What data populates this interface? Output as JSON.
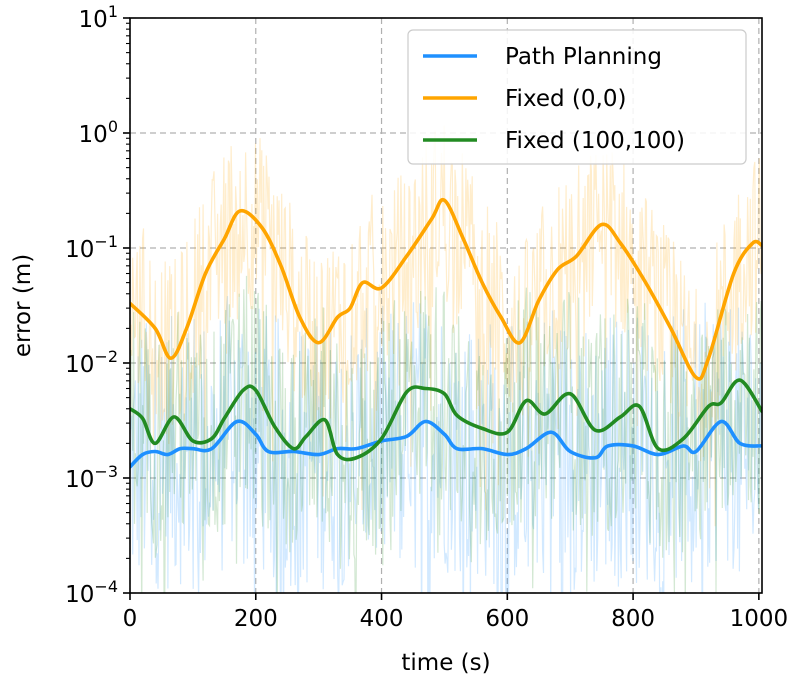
{
  "chart_data": {
    "type": "line",
    "title": "",
    "xlabel": "time (s)",
    "ylabel": "error (m)",
    "xlim": [
      0,
      1005
    ],
    "ylim": [
      0.0001,
      10
    ],
    "yscale": "log",
    "grid": true,
    "legend_position": "top-right",
    "x_ticks": [
      0,
      200,
      400,
      600,
      800,
      1000
    ],
    "x_tick_labels": [
      "0",
      "200",
      "400",
      "600",
      "800",
      "1000"
    ],
    "y_ticks": [
      {
        "value": 10,
        "base": "10",
        "exp": "1"
      },
      {
        "value": 1,
        "base": "10",
        "exp": "0"
      },
      {
        "value": 0.1,
        "base": "10",
        "exp": "−1"
      },
      {
        "value": 0.01,
        "base": "10",
        "exp": "−2"
      },
      {
        "value": 0.001,
        "base": "10",
        "exp": "−3"
      },
      {
        "value": 0.0001,
        "base": "10",
        "exp": "−4"
      }
    ],
    "series": [
      {
        "name": "Path Planning",
        "color": "#1e90ff",
        "noise_spread": 1.2,
        "x": [
          0,
          20,
          40,
          60,
          80,
          100,
          130,
          170,
          200,
          220,
          260,
          300,
          330,
          360,
          400,
          440,
          470,
          500,
          520,
          560,
          600,
          630,
          670,
          700,
          740,
          760,
          800,
          840,
          880,
          900,
          940,
          970,
          1005
        ],
        "y": [
          0.00125,
          0.0016,
          0.0017,
          0.0016,
          0.0018,
          0.0018,
          0.0018,
          0.0031,
          0.0024,
          0.0017,
          0.0017,
          0.0016,
          0.0018,
          0.0018,
          0.0021,
          0.0023,
          0.0031,
          0.0024,
          0.0018,
          0.0018,
          0.0016,
          0.0018,
          0.0025,
          0.0017,
          0.0015,
          0.0019,
          0.0019,
          0.0016,
          0.0019,
          0.0017,
          0.0031,
          0.002,
          0.0019
        ]
      },
      {
        "name": "Fixed (0,0)",
        "color": "#ffa500",
        "noise_spread": 0.8,
        "x": [
          0,
          40,
          65,
          90,
          120,
          150,
          175,
          210,
          240,
          270,
          300,
          330,
          350,
          370,
          400,
          440,
          480,
          500,
          530,
          560,
          590,
          620,
          650,
          680,
          710,
          750,
          780,
          820,
          860,
          900,
          920,
          960,
          990,
          1005
        ],
        "y": [
          0.033,
          0.02,
          0.011,
          0.02,
          0.06,
          0.12,
          0.21,
          0.15,
          0.07,
          0.025,
          0.015,
          0.025,
          0.03,
          0.05,
          0.045,
          0.085,
          0.18,
          0.26,
          0.12,
          0.05,
          0.025,
          0.015,
          0.035,
          0.065,
          0.085,
          0.16,
          0.11,
          0.05,
          0.02,
          0.0075,
          0.011,
          0.06,
          0.11,
          0.105
        ]
      },
      {
        "name": "Fixed (100,100)",
        "color": "#228b22",
        "noise_spread": 1.0,
        "x": [
          0,
          20,
          40,
          70,
          100,
          130,
          150,
          180,
          200,
          230,
          260,
          280,
          310,
          330,
          360,
          400,
          440,
          470,
          500,
          520,
          560,
          600,
          630,
          660,
          700,
          740,
          780,
          810,
          840,
          880,
          920,
          940,
          970,
          1005
        ],
        "y": [
          0.004,
          0.0033,
          0.002,
          0.0034,
          0.0021,
          0.0022,
          0.0033,
          0.0058,
          0.0058,
          0.0028,
          0.0018,
          0.0023,
          0.0032,
          0.0016,
          0.0015,
          0.0022,
          0.0056,
          0.006,
          0.0054,
          0.0035,
          0.0027,
          0.0025,
          0.0047,
          0.0036,
          0.0054,
          0.0026,
          0.0034,
          0.0042,
          0.0018,
          0.0022,
          0.0042,
          0.0045,
          0.0071,
          0.0038
        ]
      }
    ]
  }
}
